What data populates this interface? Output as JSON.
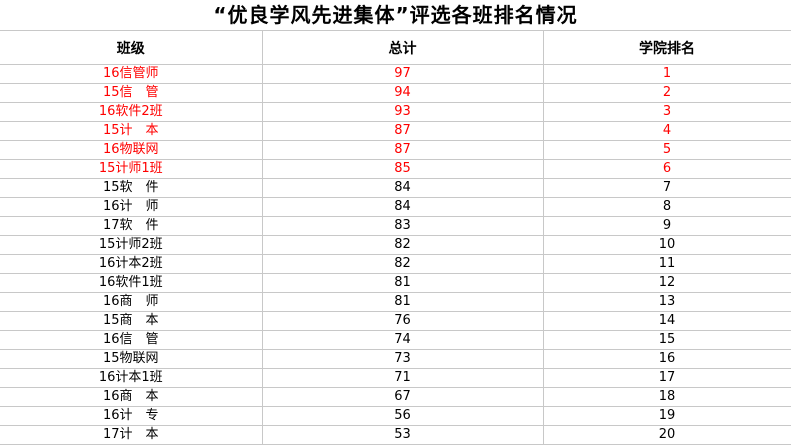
{
  "title": "“优良学风先进集体”评选各班排名情况",
  "headers": [
    "班级",
    "总计",
    "学院排名"
  ],
  "highlight_color": "#ff0000",
  "rows": [
    {
      "class": "16信管师",
      "total": "97",
      "rank": "1",
      "highlight": true
    },
    {
      "class": "15信　管",
      "total": "94",
      "rank": "2",
      "highlight": true
    },
    {
      "class": "16软件2班",
      "total": "93",
      "rank": "3",
      "highlight": true
    },
    {
      "class": "15计　本",
      "total": "87",
      "rank": "4",
      "highlight": true
    },
    {
      "class": "16物联网",
      "total": "87",
      "rank": "5",
      "highlight": true
    },
    {
      "class": "15计师1班",
      "total": "85",
      "rank": "6",
      "highlight": true
    },
    {
      "class": "15软　件",
      "total": "84",
      "rank": "7",
      "highlight": false
    },
    {
      "class": "16计　师",
      "total": "84",
      "rank": "8",
      "highlight": false
    },
    {
      "class": "17软　件",
      "total": "83",
      "rank": "9",
      "highlight": false
    },
    {
      "class": "15计师2班",
      "total": "82",
      "rank": "10",
      "highlight": false
    },
    {
      "class": "16计本2班",
      "total": "82",
      "rank": "11",
      "highlight": false
    },
    {
      "class": "16软件1班",
      "total": "81",
      "rank": "12",
      "highlight": false
    },
    {
      "class": "16商　师",
      "total": "81",
      "rank": "13",
      "highlight": false
    },
    {
      "class": "15商　本",
      "total": "76",
      "rank": "14",
      "highlight": false
    },
    {
      "class": "16信　管",
      "total": "74",
      "rank": "15",
      "highlight": false
    },
    {
      "class": "15物联网",
      "total": "73",
      "rank": "16",
      "highlight": false
    },
    {
      "class": "16计本1班",
      "total": "71",
      "rank": "17",
      "highlight": false
    },
    {
      "class": "16商　本",
      "total": "67",
      "rank": "18",
      "highlight": false
    },
    {
      "class": "16计　专",
      "total": "56",
      "rank": "19",
      "highlight": false
    },
    {
      "class": "17计　本",
      "total": "53",
      "rank": "20",
      "highlight": false
    }
  ]
}
